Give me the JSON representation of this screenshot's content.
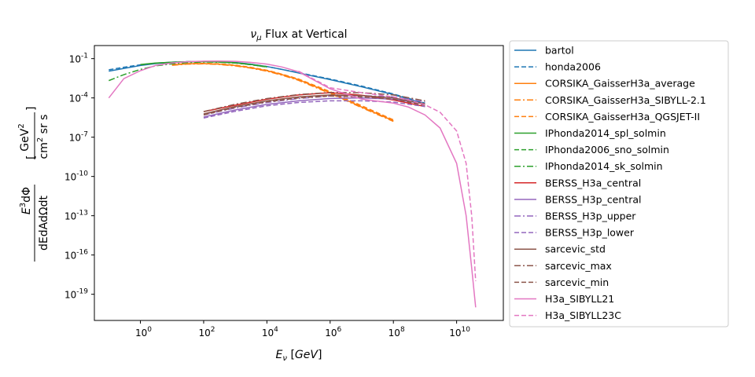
{
  "chart_data": {
    "type": "line",
    "title": "ν_μ Flux at Vertical",
    "xlabel": "E_ν [GeV]",
    "ylabel": "E³dΦ / dEdAdΩdt [GeV² / cm² sr s]",
    "x_scale": "log",
    "y_scale": "log",
    "xlim": [
      0.035,
      300000000000.0
    ],
    "ylim": [
      1e-21,
      1
    ],
    "x_ticks": [
      "10^0",
      "10^2",
      "10^4",
      "10^6",
      "10^8",
      "10^10"
    ],
    "y_ticks": [
      "10^-1",
      "10^-4",
      "10^-7",
      "10^-10",
      "10^-13",
      "10^-16",
      "10^-19"
    ],
    "grid": false,
    "legend_position": "outside right",
    "series": [
      {
        "name": "bartol",
        "color": "#1f77b4",
        "dash": "solid",
        "x": [
          0.1,
          0.3,
          1,
          3,
          10,
          30,
          100,
          300,
          1000,
          3000,
          10000,
          30000,
          100000,
          1000000.0,
          10000000.0,
          100000000.0,
          1000000000.0
        ],
        "y": [
          0.011,
          0.018,
          0.03,
          0.042,
          0.052,
          0.058,
          0.06,
          0.058,
          0.05,
          0.038,
          0.025,
          0.015,
          0.008,
          0.0025,
          0.0007,
          0.00018,
          3.5e-05
        ]
      },
      {
        "name": "honda2006",
        "color": "#1f77b4",
        "dash": "dashed",
        "x": [
          0.1,
          0.3,
          1,
          3,
          10,
          30,
          100,
          300,
          1000,
          3000,
          10000,
          30000,
          100000,
          1000000.0,
          10000000.0,
          100000000.0,
          1000000000.0
        ],
        "y": [
          0.014,
          0.022,
          0.034,
          0.045,
          0.054,
          0.059,
          0.061,
          0.058,
          0.05,
          0.038,
          0.025,
          0.015,
          0.0085,
          0.0028,
          0.0008,
          0.0002,
          4e-05
        ]
      },
      {
        "name": "CORSIKA_GaisserH3a_average",
        "color": "#ff7f0e",
        "dash": "solid",
        "x": [
          10,
          30,
          100,
          300,
          1000,
          3000,
          10000,
          30000,
          100000,
          1000000.0,
          10000000.0,
          100000000.0
        ],
        "y": [
          0.033,
          0.04,
          0.042,
          0.038,
          0.03,
          0.02,
          0.012,
          0.006,
          0.0025,
          0.00025,
          2e-05,
          1.8e-06
        ]
      },
      {
        "name": "CORSIKA_GaisserH3a_SIBYLL-2.1",
        "color": "#ff7f0e",
        "dash": "dashdot",
        "x": [
          10,
          30,
          100,
          300,
          1000,
          3000,
          10000,
          30000,
          100000,
          1000000.0,
          10000000.0,
          100000000.0
        ],
        "y": [
          0.031,
          0.038,
          0.04,
          0.036,
          0.028,
          0.019,
          0.011,
          0.0055,
          0.0022,
          0.00022,
          1.8e-05,
          1.6e-06
        ]
      },
      {
        "name": "CORSIKA_GaisserH3a_QGSJET-II",
        "color": "#ff7f0e",
        "dash": "dashed",
        "x": [
          10,
          30,
          100,
          300,
          1000,
          3000,
          10000,
          30000,
          100000,
          1000000.0,
          10000000.0,
          100000000.0
        ],
        "y": [
          0.035,
          0.042,
          0.044,
          0.04,
          0.032,
          0.022,
          0.013,
          0.0065,
          0.0028,
          0.0003,
          2.5e-05,
          2.1e-06
        ]
      },
      {
        "name": "IPhonda2014_spl_solmin",
        "color": "#2ca02c",
        "dash": "solid",
        "x": [
          1,
          3,
          10,
          30,
          100,
          300,
          1000,
          3000,
          10000
        ],
        "y": [
          0.036,
          0.046,
          0.053,
          0.058,
          0.06,
          0.056,
          0.048,
          0.036,
          0.024
        ]
      },
      {
        "name": "IPhonda2006_sno_solmin",
        "color": "#2ca02c",
        "dash": "dashed",
        "x": [
          1,
          3,
          10,
          30,
          100,
          300,
          1000,
          3000,
          10000
        ],
        "y": [
          0.034,
          0.045,
          0.052,
          0.057,
          0.059,
          0.055,
          0.047,
          0.035,
          0.023
        ]
      },
      {
        "name": "IPhonda2014_sk_solmin",
        "color": "#2ca02c",
        "dash": "dashdot",
        "x": [
          0.1,
          0.3,
          1,
          3,
          10,
          30,
          100,
          300,
          1000,
          3000,
          10000
        ],
        "y": [
          0.0021,
          0.006,
          0.015,
          0.028,
          0.04,
          0.05,
          0.055,
          0.053,
          0.046,
          0.035,
          0.023
        ]
      },
      {
        "name": "BERSS_H3a_central",
        "color": "#d62728",
        "dash": "solid",
        "x": [
          100,
          1000,
          10000,
          100000,
          1000000.0,
          10000000.0,
          100000000.0,
          1000000000.0
        ],
        "y": [
          9e-06,
          2.8e-05,
          8e-05,
          0.00017,
          0.00025,
          0.00016,
          7e-05,
          2.2e-05
        ]
      },
      {
        "name": "BERSS_H3p_central",
        "color": "#9467bd",
        "dash": "solid",
        "x": [
          100,
          1000,
          10000,
          100000,
          1000000.0,
          10000000.0,
          100000000.0,
          1000000000.0
        ],
        "y": [
          3.5e-06,
          1.2e-05,
          3.2e-05,
          6e-05,
          9e-05,
          0.0001,
          8e-05,
          3.5e-05
        ]
      },
      {
        "name": "BERSS_H3p_upper",
        "color": "#9467bd",
        "dash": "dashdot",
        "x": [
          100,
          1000,
          10000,
          100000,
          1000000.0,
          10000000.0,
          100000000.0,
          1000000000.0
        ],
        "y": [
          5e-06,
          1.7e-05,
          4.5e-05,
          9e-05,
          0.00014,
          0.00015,
          0.00012,
          5e-05
        ]
      },
      {
        "name": "BERSS_H3p_lower",
        "color": "#9467bd",
        "dash": "dashed",
        "x": [
          100,
          1000,
          10000,
          100000,
          1000000.0,
          10000000.0,
          100000000.0,
          1000000000.0
        ],
        "y": [
          2.9e-06,
          9.5e-06,
          2.5e-05,
          4.5e-05,
          6e-05,
          6e-05,
          4.8e-05,
          2.2e-05
        ]
      },
      {
        "name": "sarcevic_std",
        "color": "#8c564b",
        "dash": "solid",
        "x": [
          100,
          1000,
          10000,
          100000,
          1000000.0,
          10000000.0,
          100000000.0,
          1000000000.0
        ],
        "y": [
          6e-06,
          2.2e-05,
          6e-05,
          0.00012,
          0.00017,
          0.00015,
          0.0001,
          3.5e-05
        ]
      },
      {
        "name": "sarcevic_max",
        "color": "#8c564b",
        "dash": "dashdot",
        "x": [
          100,
          1000,
          10000,
          100000,
          1000000.0,
          10000000.0,
          100000000.0,
          1000000000.0
        ],
        "y": [
          9e-06,
          3.3e-05,
          9e-05,
          0.00018,
          0.00026,
          0.00025,
          0.00017,
          6e-05
        ]
      },
      {
        "name": "sarcevic_min",
        "color": "#8c564b",
        "dash": "dashed",
        "x": [
          100,
          1000,
          10000,
          100000,
          1000000.0,
          10000000.0,
          100000000.0,
          1000000000.0
        ],
        "y": [
          5e-06,
          1.9e-05,
          5e-05,
          0.0001,
          0.00014,
          0.00012,
          8e-05,
          2.8e-05
        ]
      },
      {
        "name": "H3a_SIBYLL21",
        "color": "#e377c2",
        "dash": "solid",
        "x": [
          0.1,
          0.3,
          1,
          3,
          10,
          30,
          100,
          300,
          1000,
          3000,
          10000,
          30000,
          100000,
          1000000.0,
          10000000.0,
          100000000.0,
          300000000.0,
          1000000000.0,
          3000000000.0,
          10000000000.0,
          20000000000.0,
          30000000000.0,
          40000000000.0
        ],
        "y": [
          0.0001,
          0.003,
          0.012,
          0.03,
          0.047,
          0.058,
          0.064,
          0.065,
          0.062,
          0.052,
          0.038,
          0.023,
          0.01,
          0.0005,
          8e-05,
          4e-05,
          2e-05,
          5e-06,
          5e-07,
          1e-09,
          1e-13,
          1e-17,
          1e-20
        ]
      },
      {
        "name": "H3a_SIBYLL23C",
        "color": "#e377c2",
        "dash": "dashed",
        "x": [
          100000,
          1000000.0,
          10000000.0,
          100000000.0,
          300000000.0,
          1000000000.0,
          3000000000.0,
          10000000000.0,
          20000000000.0,
          30000000000.0,
          40000000000.0
        ],
        "y": [
          0.011,
          0.0006,
          0.00025,
          0.00012,
          7e-05,
          3e-05,
          8e-06,
          3e-07,
          1e-09,
          1e-13,
          1e-18
        ]
      }
    ]
  }
}
